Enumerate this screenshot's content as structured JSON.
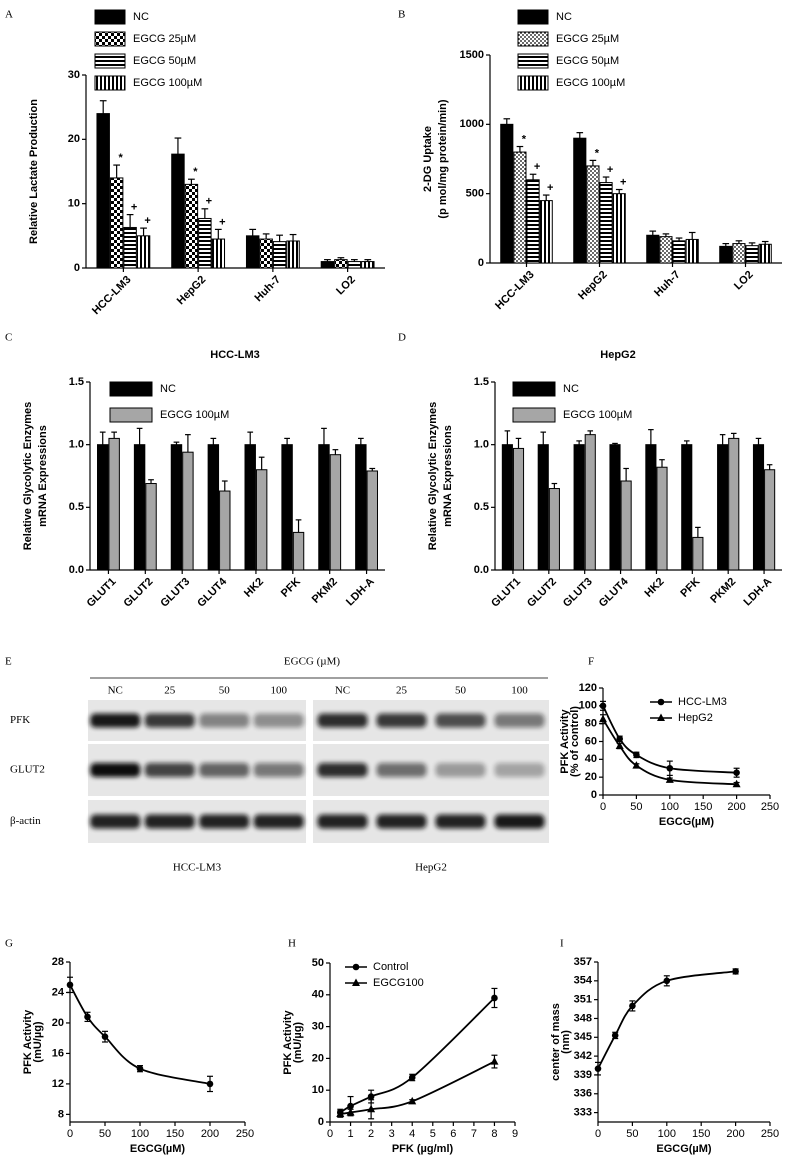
{
  "chart_data": [
    {
      "type": "bar",
      "label": "A",
      "ylabel": [
        "Relative Lactate Production"
      ],
      "categories": [
        "HCC-LM3",
        "HepG2",
        "Huh-7",
        "LO2"
      ],
      "ylim": [
        0,
        30
      ],
      "yticks": [
        0,
        10,
        20,
        30
      ],
      "series": [
        {
          "name": "NC",
          "color": "#000000",
          "pattern": "solid",
          "values": [
            24,
            17.7,
            5,
            1
          ],
          "errors": [
            2,
            2.5,
            1,
            0.3
          ],
          "annotations": [
            null,
            null,
            null,
            null
          ]
        },
        {
          "name": "EGCG 25µM",
          "color": "#000000",
          "pattern": "checker",
          "values": [
            14,
            13,
            4.5,
            1.3
          ],
          "errors": [
            2,
            0.8,
            0.8,
            0.3
          ],
          "annotations": [
            "*",
            "*",
            null,
            null
          ]
        },
        {
          "name": "EGCG 50µM",
          "color": "#000000",
          "pattern": "horizontal",
          "values": [
            6.3,
            7.7,
            4.1,
            1
          ],
          "errors": [
            2,
            1.5,
            1,
            0.3
          ],
          "annotations": [
            "+",
            "+",
            null,
            null
          ]
        },
        {
          "name": "EGCG 100µM",
          "color": "#000000",
          "pattern": "vertical",
          "values": [
            5,
            4.5,
            4.2,
            1
          ],
          "errors": [
            1.2,
            1.5,
            1,
            0.3
          ],
          "annotations": [
            "+",
            "+",
            null,
            null
          ]
        }
      ]
    },
    {
      "type": "bar",
      "label": "B",
      "ylabel": [
        "2-DG Uptake",
        "(p mol/mg protein/min)"
      ],
      "categories": [
        "HCC-LM3",
        "HepG2",
        "Huh-7",
        "LO2"
      ],
      "ylim": [
        0,
        1500
      ],
      "yticks": [
        0,
        500,
        1000,
        1500
      ],
      "series": [
        {
          "name": "NC",
          "color": "#000000",
          "pattern": "solid",
          "values": [
            1000,
            900,
            200,
            120
          ],
          "errors": [
            40,
            40,
            30,
            20
          ],
          "annotations": [
            null,
            null,
            null,
            null
          ]
        },
        {
          "name": "EGCG 25µM",
          "color": "#000000",
          "pattern": "dots",
          "values": [
            800,
            700,
            190,
            140
          ],
          "errors": [
            40,
            40,
            20,
            20
          ],
          "annotations": [
            "*",
            "*",
            null,
            null
          ]
        },
        {
          "name": "EGCG 50µM",
          "color": "#000000",
          "pattern": "horizontal",
          "values": [
            600,
            580,
            160,
            125
          ],
          "errors": [
            40,
            40,
            20,
            20
          ],
          "annotations": [
            "+",
            "+",
            null,
            null
          ]
        },
        {
          "name": "EGCG 100µM",
          "color": "#000000",
          "pattern": "vertical",
          "values": [
            450,
            500,
            170,
            135
          ],
          "errors": [
            40,
            30,
            50,
            20
          ],
          "annotations": [
            "+",
            "+",
            null,
            null
          ]
        }
      ]
    },
    {
      "type": "bar",
      "label": "C",
      "title": "HCC-LM3",
      "ylabel": [
        "Relative Glycolytic Enzymes",
        "mRNA Expressions"
      ],
      "categories": [
        "GLUT1",
        "GLUT2",
        "GLUT3",
        "GLUT4",
        "HK2",
        "PFK",
        "PKM2",
        "LDH-A"
      ],
      "ylim": [
        0,
        1.5
      ],
      "yticks": [
        {
          "value": 0,
          "label": "0.0"
        },
        0.5,
        {
          "value": 1,
          "label": "1.0"
        },
        1.5
      ],
      "series": [
        {
          "name": "NC",
          "color": "#000000",
          "pattern": "solid",
          "values": [
            1,
            1,
            1,
            1,
            1,
            1,
            1,
            1
          ],
          "errors": [
            0.1,
            0.13,
            0.02,
            0.05,
            0.1,
            0.05,
            0.13,
            0.05
          ]
        },
        {
          "name": "EGCG 100µM",
          "color": "#a6a6a6",
          "pattern": "solid",
          "values": [
            1.05,
            0.69,
            0.94,
            0.63,
            0.8,
            0.3,
            0.92,
            0.79
          ],
          "errors": [
            0.05,
            0.03,
            0.14,
            0.08,
            0.1,
            0.1,
            0.04,
            0.02
          ]
        }
      ]
    },
    {
      "type": "bar",
      "label": "D",
      "title": "HepG2",
      "ylabel": [
        "Relative Glycolytic Enzymes",
        "mRNA Expressions"
      ],
      "categories": [
        "GLUT1",
        "GLUT2",
        "GLUT3",
        "GLUT4",
        "HK2",
        "PFK",
        "PKM2",
        "LDH-A"
      ],
      "ylim": [
        0,
        1.5
      ],
      "yticks": [
        {
          "value": 0,
          "label": "0.0"
        },
        0.5,
        {
          "value": 1,
          "label": "1.0"
        },
        1.5
      ],
      "series": [
        {
          "name": "NC",
          "color": "#000000",
          "pattern": "solid",
          "values": [
            1,
            1,
            1,
            1,
            1,
            1,
            1,
            1
          ],
          "errors": [
            0.11,
            0.1,
            0.03,
            0.01,
            0.12,
            0.03,
            0.08,
            0.05
          ]
        },
        {
          "name": "EGCG 100µM",
          "color": "#a6a6a6",
          "pattern": "solid",
          "values": [
            0.97,
            0.65,
            1.08,
            0.71,
            0.82,
            0.26,
            1.05,
            0.8
          ],
          "errors": [
            0.08,
            0.04,
            0.03,
            0.1,
            0.06,
            0.08,
            0.04,
            0.04
          ]
        }
      ]
    },
    {
      "type": "line",
      "label": "F",
      "xlabel": "EGCG(µM)",
      "ylabel": [
        "PFK Activity",
        "(% of control)"
      ],
      "x": [
        0,
        25,
        50,
        100,
        200
      ],
      "xlim": [
        0,
        250
      ],
      "xticks": [
        0,
        50,
        100,
        150,
        200,
        250
      ],
      "ylim": [
        0,
        120
      ],
      "yticks": [
        0,
        20,
        40,
        60,
        80,
        100,
        120
      ],
      "series": [
        {
          "name": "HCC-LM3",
          "color": "#000000",
          "marker": "circle",
          "values": [
            100,
            63,
            45,
            30,
            25
          ],
          "errors": [
            5,
            3,
            3,
            8,
            5
          ]
        },
        {
          "name": "HepG2",
          "color": "#000000",
          "marker": "triangle",
          "values": [
            85,
            55,
            33,
            17,
            12
          ],
          "errors": [
            5,
            3,
            2,
            2,
            2
          ]
        }
      ]
    },
    {
      "type": "line",
      "label": "G",
      "xlabel": "EGCG(µM)",
      "ylabel": [
        "PFK Activity",
        "(mU/µg)"
      ],
      "x": [
        0,
        25,
        50,
        100,
        200
      ],
      "xlim": [
        0,
        250
      ],
      "xticks": [
        0,
        50,
        100,
        150,
        200,
        250
      ],
      "ylim": [
        7,
        28
      ],
      "yticks": [
        8,
        12,
        16,
        20,
        24,
        28
      ],
      "series": [
        {
          "color": "#000000",
          "marker": "circle",
          "values": [
            25,
            20.8,
            18.2,
            14,
            12
          ],
          "errors": [
            1,
            0.6,
            0.7,
            0.4,
            1
          ]
        }
      ]
    },
    {
      "type": "line",
      "label": "H",
      "xlabel": "PFK (µg/ml)",
      "ylabel": [
        "PFK Activity",
        "(mU/µg)"
      ],
      "x": [
        0.5,
        1,
        2,
        4,
        8
      ],
      "xlim": [
        0,
        9
      ],
      "xticks": [
        0,
        1,
        2,
        3,
        4,
        5,
        6,
        7,
        8,
        9
      ],
      "ylim": [
        0,
        50
      ],
      "yticks": [
        0,
        10,
        20,
        30,
        40,
        50
      ],
      "series": [
        {
          "name": "Control",
          "color": "#000000",
          "marker": "circle",
          "values": [
            3,
            5,
            8,
            14,
            39
          ],
          "errors": [
            1,
            3,
            2,
            1,
            3
          ]
        },
        {
          "name": "EGCG100",
          "color": "#000000",
          "marker": "triangle",
          "values": [
            2.5,
            3,
            4,
            6.5,
            19
          ],
          "errors": [
            1,
            1,
            3,
            0.5,
            2
          ]
        }
      ]
    },
    {
      "type": "line",
      "label": "I",
      "xlabel": "EGCG(µM)",
      "ylabel": [
        "center of mass",
        "(nm)"
      ],
      "x": [
        0,
        25,
        50,
        100,
        200
      ],
      "xlim": [
        0,
        250
      ],
      "xticks": [
        0,
        50,
        100,
        150,
        200,
        250
      ],
      "ylim": [
        331.5,
        357
      ],
      "yticks": [
        333,
        336,
        339,
        342,
        345,
        348,
        351,
        354,
        357
      ],
      "series": [
        {
          "color": "#000000",
          "marker": "circle",
          "values": [
            340,
            345.3,
            350,
            354,
            355.5
          ],
          "errors": [
            1,
            0.5,
            0.8,
            0.8,
            0.4
          ]
        }
      ]
    }
  ],
  "blot": {
    "label": "E",
    "treatment": "EGCG (µM)",
    "lanes": [
      "NC",
      "25",
      "50",
      "100",
      "NC",
      "25",
      "50",
      "100"
    ],
    "rows": [
      "PFK",
      "GLUT2",
      "β-actin"
    ],
    "cell_lines": [
      "HCC-LM3",
      "HepG2"
    ]
  }
}
